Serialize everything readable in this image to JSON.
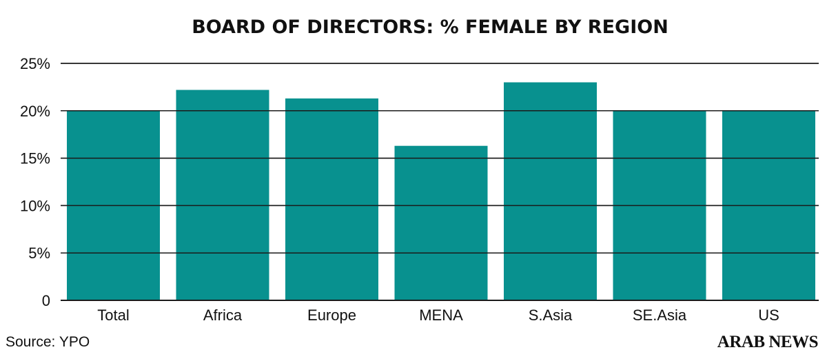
{
  "chart_data": {
    "type": "bar",
    "title": "BOARD OF DIRECTORS: % FEMALE BY REGION",
    "categories": [
      "Total",
      "Africa",
      "Europe",
      "MENA",
      "S.Asia",
      "SE.Asia",
      "US"
    ],
    "values": [
      20,
      22.2,
      21.3,
      16.3,
      23.0,
      20,
      20
    ],
    "ylim": [
      0,
      25
    ],
    "yticks": [
      0,
      5,
      10,
      15,
      20,
      25
    ],
    "ytick_labels": [
      "0",
      "5%",
      "10%",
      "15%",
      "20%",
      "25%"
    ],
    "xlabel": "",
    "ylabel": "",
    "grid": true,
    "bar_color": "#08918f"
  },
  "source": "Source: YPO",
  "brand": "ARAB NEWS"
}
